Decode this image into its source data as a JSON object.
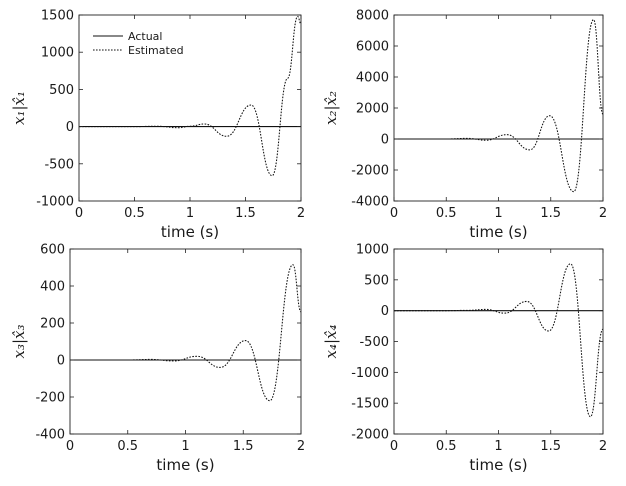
{
  "chart_data": [
    {
      "type": "line",
      "id": "p1",
      "xlabel": "time (s)",
      "ylabel": "x₁|x̂₁",
      "xlim": [
        0,
        2
      ],
      "ylim": [
        -1000,
        1500
      ],
      "xticks": [
        0,
        0.5,
        1,
        1.5,
        2
      ],
      "xtick_labels": [
        "0",
        "0.5",
        "1",
        "1.5",
        "2"
      ],
      "yticks": [
        -1000,
        -500,
        0,
        500,
        1000,
        1500
      ],
      "ytick_labels": [
        "-1000",
        "-500",
        "0",
        "500",
        "1000",
        "1500"
      ],
      "legend": {
        "position": "top-left",
        "entries": [
          "Actual",
          "Estimated"
        ]
      },
      "series": [
        {
          "name": "Actual",
          "style": "solid",
          "x": [
            0,
            2
          ],
          "y": [
            0,
            0
          ]
        },
        {
          "name": "Estimated",
          "style": "dotted",
          "x": [
            0,
            0.5,
            0.7,
            0.9,
            1.0,
            1.13,
            1.33,
            1.55,
            1.74,
            1.88,
            1.97,
            2.0
          ],
          "y": [
            0,
            0,
            5,
            -15,
            5,
            35,
            -130,
            290,
            -660,
            650,
            1480,
            1380
          ]
        }
      ]
    },
    {
      "type": "line",
      "id": "p2",
      "xlabel": "time (s)",
      "ylabel": "x₂|x̂₂",
      "xlim": [
        0,
        2
      ],
      "ylim": [
        -4000,
        8000
      ],
      "xticks": [
        0,
        0.5,
        1,
        1.5,
        2
      ],
      "xtick_labels": [
        "0",
        "0.5",
        "1",
        "1.5",
        "2"
      ],
      "yticks": [
        -4000,
        -2000,
        0,
        2000,
        4000,
        6000,
        8000
      ],
      "ytick_labels": [
        "-4000",
        "-2000",
        "0",
        "2000",
        "4000",
        "6000",
        "8000"
      ],
      "series": [
        {
          "name": "Actual",
          "style": "solid",
          "x": [
            0,
            2
          ],
          "y": [
            0,
            0
          ]
        },
        {
          "name": "Estimated",
          "style": "dotted",
          "x": [
            0,
            0.5,
            0.7,
            0.88,
            1.08,
            1.3,
            1.49,
            1.72,
            1.91,
            2.0
          ],
          "y": [
            0,
            0,
            40,
            -80,
            280,
            -700,
            1500,
            -3400,
            7700,
            1600
          ]
        }
      ]
    },
    {
      "type": "line",
      "id": "p3",
      "xlabel": "time (s)",
      "ylabel": "x₃|x̂₃",
      "xlim": [
        0,
        2
      ],
      "ylim": [
        -400,
        600
      ],
      "xticks": [
        0,
        0.5,
        1,
        1.5,
        2
      ],
      "xtick_labels": [
        "0",
        "0.5",
        "1",
        "1.5",
        "2"
      ],
      "yticks": [
        -400,
        -200,
        0,
        200,
        400,
        600
      ],
      "ytick_labels": [
        "-400",
        "-200",
        "0",
        "200",
        "400",
        "600"
      ],
      "series": [
        {
          "name": "Actual",
          "style": "solid",
          "x": [
            0,
            2
          ],
          "y": [
            0,
            0
          ]
        },
        {
          "name": "Estimated",
          "style": "dotted",
          "x": [
            0,
            0.5,
            0.7,
            0.9,
            1.1,
            1.3,
            1.52,
            1.73,
            1.93,
            2.0
          ],
          "y": [
            0,
            0,
            3,
            -5,
            20,
            -40,
            105,
            -220,
            515,
            260
          ]
        }
      ]
    },
    {
      "type": "line",
      "id": "p4",
      "xlabel": "time (s)",
      "ylabel": "x₄|x̂₄",
      "xlim": [
        0,
        2
      ],
      "ylim": [
        -2000,
        1000
      ],
      "xticks": [
        0,
        0.5,
        1,
        1.5,
        2
      ],
      "xtick_labels": [
        "0",
        "0.5",
        "1",
        "1.5",
        "2"
      ],
      "yticks": [
        -2000,
        -1500,
        -1000,
        -500,
        0,
        500,
        1000
      ],
      "ytick_labels": [
        "-2000",
        "-1500",
        "-1000",
        "-500",
        "0",
        "500",
        "1000"
      ],
      "series": [
        {
          "name": "Actual",
          "style": "solid",
          "x": [
            0,
            2
          ],
          "y": [
            0,
            0
          ]
        },
        {
          "name": "Estimated",
          "style": "dotted",
          "x": [
            0,
            0.5,
            0.7,
            0.88,
            1.06,
            1.27,
            1.48,
            1.69,
            1.88,
            2.0
          ],
          "y": [
            0,
            0,
            5,
            20,
            -40,
            150,
            -330,
            760,
            -1720,
            -300
          ]
        }
      ]
    }
  ]
}
